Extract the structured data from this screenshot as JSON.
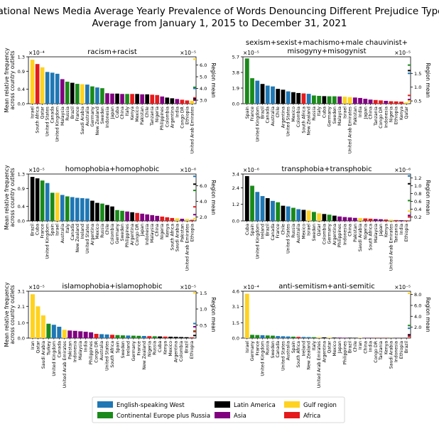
{
  "title": {
    "line1": "National News Media Average Yearly Prevalence of Words Denouncing Different Prejudice Types",
    "line2": "Average from January 1, 2015 to December 31, 2021"
  },
  "shared_labels": {
    "ylabel_line1": "Mean relative frequency",
    "ylabel_line2": "across country outlets",
    "right_ylabel": "Region mean"
  },
  "legend": [
    {
      "name": "English-speaking West",
      "color": "#1f77b4"
    },
    {
      "name": "Continental Europe plus Russia",
      "color": "#1a8a1a"
    },
    {
      "name": "Latin America",
      "color": "#000000"
    },
    {
      "name": "Asia",
      "color": "#800080"
    },
    {
      "name": "Gulf region",
      "color": "#ffd21f"
    },
    {
      "name": "Africa",
      "color": "#e41a1c"
    }
  ],
  "chart_data": [
    {
      "type": "bar",
      "title": "racism+racist",
      "ylim": [
        0,
        1.3
      ],
      "yticks": [
        0,
        0.4,
        0.9,
        1.3
      ],
      "ytick_labels": [
        "0.0",
        "0.4",
        "0.9",
        "1.3"
      ],
      "yexponent": "×10⁻⁴",
      "right_ylim": [
        2.7,
        6.7
      ],
      "right_yticks": [
        3,
        4,
        5,
        6
      ],
      "right_ytick_labels": [
        "3.0",
        "4.0",
        "5.0",
        "6.0"
      ],
      "right_exponent": "×10⁻⁵",
      "region_means": [
        {
          "region": "Gulf region",
          "value": 6.5
        },
        {
          "region": "Continental Europe plus Russia",
          "value": 4.1
        },
        {
          "region": "English-speaking West",
          "value": 4.0
        },
        {
          "region": "Africa",
          "value": 3.2
        },
        {
          "region": "Latin America",
          "value": 3.1
        },
        {
          "region": "Asia",
          "value": 3.0
        }
      ],
      "categories": [
        "Israel",
        "South Africa",
        "Qatar",
        "United States",
        "Canada",
        "United Kingdom",
        "Malaysia",
        "Russia",
        "Brazil",
        "France",
        "Saudi Arabia",
        "Australia",
        "Germany",
        "New Zealand",
        "Sweden",
        "Indonesia",
        "Japan",
        "Cuba",
        "China",
        "Italy",
        "Kenya",
        "Mexico",
        "Pakistan",
        "Chile",
        "Tanzania",
        "Nigeria",
        "Philippines",
        "Colombia",
        "Argentina",
        "India",
        "Congo DR",
        "Ethiopia",
        "United Arab Emirates"
      ],
      "regions": [
        "Gulf region",
        "Africa",
        "Gulf region",
        "English-speaking West",
        "English-speaking West",
        "English-speaking West",
        "Asia",
        "Continental Europe plus Russia",
        "Latin America",
        "Continental Europe plus Russia",
        "Gulf region",
        "English-speaking West",
        "Continental Europe plus Russia",
        "English-speaking West",
        "Continental Europe plus Russia",
        "Asia",
        "Asia",
        "Latin America",
        "Asia",
        "Continental Europe plus Russia",
        "Africa",
        "Latin America",
        "Asia",
        "Latin America",
        "Africa",
        "Africa",
        "Asia",
        "Latin America",
        "Latin America",
        "Asia",
        "Africa",
        "Africa",
        "Gulf region"
      ],
      "values": [
        1.22,
        1.1,
        1.01,
        0.88,
        0.86,
        0.83,
        0.68,
        0.61,
        0.58,
        0.55,
        0.54,
        0.53,
        0.48,
        0.45,
        0.43,
        0.29,
        0.28,
        0.28,
        0.27,
        0.27,
        0.27,
        0.27,
        0.26,
        0.26,
        0.25,
        0.24,
        0.2,
        0.17,
        0.15,
        0.13,
        0.11,
        0.09,
        0.08
      ],
      "label_every": 1
    },
    {
      "type": "bar",
      "title_line1": "sexism+sexist+machismo+male chauvinist+",
      "title_line2": "misogyny+misogynist",
      "ylim": [
        0,
        5.7
      ],
      "yticks": [
        0,
        1.9,
        3.8,
        5.7
      ],
      "ytick_labels": [
        "0.0",
        "1.9",
        "3.8",
        "5.7"
      ],
      "yexponent": "×10⁻⁵",
      "right_ylim": [
        0.4,
        2.1
      ],
      "right_yticks": [
        0.5,
        1.0,
        1.5
      ],
      "right_ytick_labels": [
        "0.5",
        "1.0",
        "1.5"
      ],
      "right_exponent": "×10⁻⁵",
      "region_means": [
        {
          "region": "Continental Europe plus Russia",
          "value": 1.8
        },
        {
          "region": "Latin America",
          "value": 1.6
        },
        {
          "region": "English-speaking West",
          "value": 1.5
        },
        {
          "region": "Africa",
          "value": 0.7
        },
        {
          "region": "Asia",
          "value": 0.55
        },
        {
          "region": "Gulf region",
          "value": 0.5
        }
      ],
      "categories": [
        "Spain",
        "France",
        "United Kingdom",
        "Brazil",
        "Canada",
        "Australia",
        "Chile",
        "Argentina",
        "United States",
        "Mexico",
        "Colombia",
        "South Africa",
        "New Zealand",
        "Russia",
        "Italy",
        "Cuba",
        "Germany",
        "Sweden",
        "Malaysia",
        "Israel",
        "United Arab Emirates",
        "Pakistan",
        "India",
        "Japan",
        "China",
        "Tanzania",
        "Congo DR",
        "Indonesia",
        "Nigeria",
        "Ethiopia",
        "Kenya",
        "Qatar"
      ],
      "regions": [
        "Continental Europe plus Russia",
        "Continental Europe plus Russia",
        "English-speaking West",
        "Latin America",
        "English-speaking West",
        "English-speaking West",
        "Latin America",
        "Latin America",
        "English-speaking West",
        "Latin America",
        "Latin America",
        "Africa",
        "English-speaking West",
        "Continental Europe plus Russia",
        "Continental Europe plus Russia",
        "Latin America",
        "Continental Europe plus Russia",
        "Continental Europe plus Russia",
        "Asia",
        "Gulf region",
        "Gulf region",
        "Asia",
        "Asia",
        "Asia",
        "Asia",
        "Africa",
        "Africa",
        "Asia",
        "Africa",
        "Africa",
        "Africa",
        "Gulf region"
      ],
      "values": [
        5.5,
        3.1,
        2.8,
        2.4,
        2.2,
        2.1,
        1.8,
        1.7,
        1.5,
        1.4,
        1.3,
        1.25,
        1.2,
        1.0,
        0.95,
        0.92,
        0.9,
        0.9,
        0.88,
        0.85,
        0.8,
        0.75,
        0.7,
        0.6,
        0.5,
        0.45,
        0.4,
        0.35,
        0.3,
        0.28,
        0.25,
        0.15
      ],
      "label_every": 1
    },
    {
      "type": "bar",
      "title": "homophobia+homophobic",
      "ylim": [
        0,
        1.3
      ],
      "yticks": [
        0,
        0.4,
        0.9,
        1.3
      ],
      "ytick_labels": [
        "0.0",
        "0.4",
        "0.9",
        "1.3"
      ],
      "yexponent": "×10⁻⁵",
      "right_ylim": [
        1.5,
        7.5
      ],
      "right_yticks": [
        2,
        4,
        6
      ],
      "right_ytick_labels": [
        "2.0",
        "4.0",
        "6.0"
      ],
      "right_exponent": "×10⁻⁶",
      "region_means": [
        {
          "region": "English-speaking West",
          "value": 7.2
        },
        {
          "region": "Latin America",
          "value": 6.2
        },
        {
          "region": "Continental Europe plus Russia",
          "value": 5.4
        },
        {
          "region": "Africa",
          "value": 3.3
        },
        {
          "region": "Asia",
          "value": 2.3
        },
        {
          "region": "Gulf region",
          "value": 1.8
        }
      ],
      "categories": [
        "Brazil",
        "Cuba",
        "France",
        "United Kingdom",
        "Spain",
        "Israel",
        "Australia",
        "Italy",
        "Canada",
        "New Zealand",
        "Ireland",
        "United States",
        "Argentina",
        "Mexico",
        "Russia",
        "Chile",
        "Colombia",
        "Germany",
        "Sweden",
        "Philippines",
        "Argentina",
        "Congo DR",
        "Japan",
        "Indonesia",
        "Malaysia",
        "China",
        "Nigeria",
        "Kenya",
        "South Africa",
        "Saudi Arabia",
        "Pakistan",
        "United Arab Emirates",
        "Ethiopia"
      ],
      "regions": [
        "Latin America",
        "Latin America",
        "Continental Europe plus Russia",
        "English-speaking West",
        "Continental Europe plus Russia",
        "Gulf region",
        "English-speaking West",
        "Continental Europe plus Russia",
        "English-speaking West",
        "English-speaking West",
        "English-speaking West",
        "English-speaking West",
        "Latin America",
        "Latin America",
        "Continental Europe plus Russia",
        "Latin America",
        "Latin America",
        "Continental Europe plus Russia",
        "Continental Europe plus Russia",
        "Asia",
        "Latin America",
        "Africa",
        "Asia",
        "Asia",
        "Asia",
        "Asia",
        "Africa",
        "Africa",
        "Africa",
        "Gulf region",
        "Asia",
        "Gulf region",
        "Africa"
      ],
      "values": [
        1.22,
        1.18,
        1.12,
        1.05,
        0.78,
        0.78,
        0.72,
        0.68,
        0.66,
        0.64,
        0.63,
        0.62,
        0.56,
        0.5,
        0.48,
        0.44,
        0.4,
        0.3,
        0.28,
        0.26,
        0.24,
        0.22,
        0.2,
        0.18,
        0.16,
        0.14,
        0.12,
        0.1,
        0.08,
        0.07,
        0.06,
        0.05,
        0.03
      ],
      "label_every": 1
    },
    {
      "type": "bar",
      "title": "transphobia+transphobic",
      "ylim": [
        0,
        3.4
      ],
      "yticks": [
        0,
        1.2,
        2.4,
        3.4
      ],
      "ytick_labels": [
        "0.0",
        "1.2",
        "2.4",
        "3.4"
      ],
      "yexponent": "×10⁻⁶",
      "right_ylim": [
        0.1,
        1.3
      ],
      "right_yticks": [
        0.2,
        0.4,
        0.6,
        0.8,
        1.0,
        1.2
      ],
      "right_ytick_labels": [
        "0.2",
        "0.4",
        "0.6",
        "0.8",
        "1.0",
        "1.2"
      ],
      "right_exponent": "×10⁻⁶",
      "region_means": [
        {
          "region": "English-speaking West",
          "value": 1.25
        },
        {
          "region": "Latin America",
          "value": 1.05
        },
        {
          "region": "Continental Europe plus Russia",
          "value": 0.62
        },
        {
          "region": "Gulf region",
          "value": 0.35
        },
        {
          "region": "Asia",
          "value": 0.24
        },
        {
          "region": "Africa",
          "value": 0.2
        }
      ],
      "categories": [
        "Cuba",
        "Spain",
        "United Kingdom",
        "Ireland",
        "Brazil",
        "Canada",
        "France",
        "Chile",
        "United States",
        "Russia",
        "Australia",
        "Mexico",
        "Israel",
        "Sweden",
        "Qatar",
        "Colombia",
        "Germany",
        "Argentina",
        "Philippines",
        "Indonesia",
        "China",
        "Pakistan",
        "Saudi Arabia",
        "Nigeria",
        "South Africa",
        "Malaysia",
        "Japan",
        "Kenya",
        "United Arab Emirates",
        "Tanzania",
        "India",
        "Ethiopia"
      ],
      "regions": [
        "Latin America",
        "Continental Europe plus Russia",
        "English-speaking West",
        "English-speaking West",
        "Latin America",
        "English-speaking West",
        "Continental Europe plus Russia",
        "Latin America",
        "English-speaking West",
        "Continental Europe plus Russia",
        "English-speaking West",
        "Latin America",
        "Gulf region",
        "Continental Europe plus Russia",
        "Gulf region",
        "Latin America",
        "Continental Europe plus Russia",
        "Latin America",
        "Asia",
        "Asia",
        "Asia",
        "Asia",
        "Gulf region",
        "Africa",
        "Africa",
        "Asia",
        "Asia",
        "Africa",
        "Gulf region",
        "Africa",
        "Asia",
        "Africa"
      ],
      "values": [
        3.25,
        2.55,
        2.1,
        1.8,
        1.65,
        1.45,
        1.35,
        1.1,
        1.05,
        0.95,
        0.85,
        0.8,
        0.75,
        0.65,
        0.55,
        0.5,
        0.45,
        0.38,
        0.32,
        0.28,
        0.25,
        0.22,
        0.2,
        0.18,
        0.16,
        0.14,
        0.12,
        0.1,
        0.08,
        0.06,
        0.05,
        0.04
      ],
      "label_every": 1
    },
    {
      "type": "bar",
      "title": "islamophobia+islamophobic",
      "ylim": [
        0,
        3.1
      ],
      "yticks": [
        0,
        1.0,
        2.1,
        3.1
      ],
      "ytick_labels": [
        "0.0",
        "1.0",
        "2.1",
        "3.1"
      ],
      "yexponent": "×10⁻⁵",
      "right_ylim": [
        0.1,
        1.55
      ],
      "right_yticks": [
        0.5,
        1.0,
        1.5
      ],
      "right_ytick_labels": [
        "0.5",
        "1.0",
        "1.5"
      ],
      "right_exponent": "×10⁻⁵",
      "region_means": [
        {
          "region": "Gulf region",
          "value": 1.5
        },
        {
          "region": "English-speaking West",
          "value": 0.55
        },
        {
          "region": "Asia",
          "value": 0.45
        },
        {
          "region": "Continental Europe plus Russia",
          "value": 0.32
        },
        {
          "region": "Africa",
          "value": 0.3
        },
        {
          "region": "Latin America",
          "value": 0.18
        }
      ],
      "categories": [
        "Iran",
        "Qatar",
        "Saudi Arabia",
        "Turkey",
        "United Kingdom",
        "Canada",
        "United Arab Emirates",
        "Pakistan",
        "Indonesia",
        "Malaysia",
        "India",
        "Philippines",
        "Congo DR",
        "Australia",
        "United States",
        "South Africa",
        "Spain",
        "Sweden",
        "Ireland",
        "Germany",
        "France",
        "New Zealand",
        "Nigeria",
        "Russia",
        "Cuba",
        "Kenya",
        "Mexico",
        "Argentina",
        "Colombia",
        "Brazil",
        "Ethiopia"
      ],
      "regions": [
        "Gulf region",
        "Gulf region",
        "Gulf region",
        "Continental Europe plus Russia",
        "English-speaking West",
        "English-speaking West",
        "Gulf region",
        "Asia",
        "Asia",
        "Asia",
        "Asia",
        "Asia",
        "Africa",
        "English-speaking West",
        "English-speaking West",
        "Africa",
        "Continental Europe plus Russia",
        "Continental Europe plus Russia",
        "English-speaking West",
        "Continental Europe plus Russia",
        "Continental Europe plus Russia",
        "English-speaking West",
        "Africa",
        "Continental Europe plus Russia",
        "Latin America",
        "Africa",
        "Latin America",
        "Latin America",
        "Latin America",
        "Latin America",
        "Africa"
      ],
      "values": [
        2.9,
        2.1,
        1.5,
        0.95,
        0.88,
        0.75,
        0.55,
        0.5,
        0.48,
        0.45,
        0.42,
        0.38,
        0.28,
        0.26,
        0.24,
        0.22,
        0.2,
        0.18,
        0.17,
        0.16,
        0.15,
        0.14,
        0.13,
        0.12,
        0.11,
        0.1,
        0.09,
        0.08,
        0.07,
        0.06,
        0.05
      ],
      "label_every": 1
    },
    {
      "type": "bar",
      "title": "anti-semitism+anti-semitic",
      "ylim": [
        0,
        4.6
      ],
      "yticks": [
        0,
        1.5,
        3.1,
        4.6
      ],
      "ytick_labels": [
        "0.0",
        "1.5",
        "3.1",
        "4.6"
      ],
      "yexponent": "×10⁻⁴",
      "right_ylim": [
        0,
        8.6
      ],
      "right_yticks": [
        2,
        4,
        6,
        8
      ],
      "right_ytick_labels": [
        "2.0",
        "4.0",
        "6.0",
        "8.0"
      ],
      "right_exponent": "×10⁻⁵",
      "region_means": [
        {
          "region": "Gulf region",
          "value": 8.2
        },
        {
          "region": "Continental Europe plus Russia",
          "value": 2.3
        },
        {
          "region": "English-speaking West",
          "value": 1.8
        },
        {
          "region": "Latin America",
          "value": 0.6
        },
        {
          "region": "Asia",
          "value": 0.4
        },
        {
          "region": "Africa",
          "value": 0.3
        }
      ],
      "categories": [
        "Israel",
        "Germany",
        "France",
        "United Kingdom",
        "Russia",
        "Sweden",
        "Canada",
        "United States",
        "Australia",
        "Spain",
        "South Africa",
        "Ireland",
        "New Zealand",
        "Italy",
        "United Arab Emirates",
        "Argentina",
        "Qatar",
        "Mexico",
        "Japan",
        "Philippines",
        "Brazil",
        "Chile",
        "Iran",
        "China",
        "India",
        "Congo DR",
        "Tanzania",
        "Kenya",
        "Saudi Arabia",
        "Indonesia",
        "Ethiopia",
        "Brazil"
      ],
      "regions": [
        "Gulf region",
        "Continental Europe plus Russia",
        "Continental Europe plus Russia",
        "English-speaking West",
        "Continental Europe plus Russia",
        "Continental Europe plus Russia",
        "English-speaking West",
        "English-speaking West",
        "English-speaking West",
        "Continental Europe plus Russia",
        "Africa",
        "English-speaking West",
        "English-speaking West",
        "Continental Europe plus Russia",
        "Gulf region",
        "Latin America",
        "Gulf region",
        "Latin America",
        "Asia",
        "Asia",
        "Latin America",
        "Latin America",
        "Gulf region",
        "Asia",
        "Asia",
        "Africa",
        "Africa",
        "Africa",
        "Gulf region",
        "Asia",
        "Africa",
        "Latin America"
      ],
      "values": [
        4.35,
        0.32,
        0.3,
        0.28,
        0.26,
        0.24,
        0.2,
        0.18,
        0.16,
        0.14,
        0.12,
        0.11,
        0.1,
        0.09,
        0.08,
        0.07,
        0.06,
        0.05,
        0.05,
        0.04,
        0.04,
        0.03,
        0.03,
        0.03,
        0.02,
        0.02,
        0.02,
        0.02,
        0.01,
        0.01,
        0.01,
        0.01
      ],
      "label_every": 1
    }
  ]
}
